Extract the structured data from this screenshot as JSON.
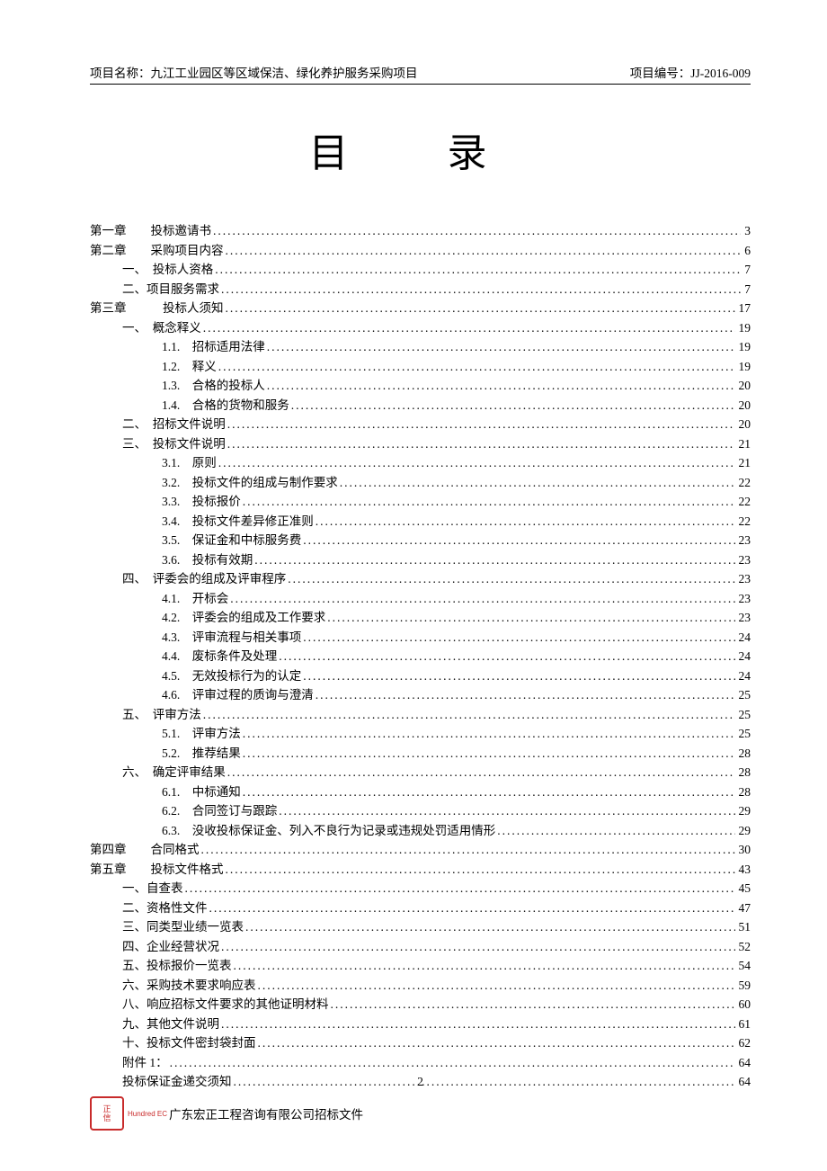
{
  "header": {
    "project_label": "项目名称：",
    "project_name": "九江工业园区等区域保洁、绿化养护服务采购项目",
    "code_label": "项目编号：",
    "code": "JJ-2016-009"
  },
  "title": "目录",
  "toc": [
    {
      "indent": "indent-0",
      "label": "第一章　　投标邀请书",
      "page": "3"
    },
    {
      "indent": "indent-0",
      "label": "第二章　　采购项目内容",
      "page": "6"
    },
    {
      "indent": "indent-1",
      "label": "一、　投标人资格",
      "page": "7"
    },
    {
      "indent": "indent-1",
      "label": "二、项目服务需求",
      "page": "7"
    },
    {
      "indent": "indent-0",
      "label": "第三章　　　投标人须知",
      "page": "17"
    },
    {
      "indent": "indent-1b",
      "label": "一、　概念释义",
      "page": "19"
    },
    {
      "indent": "indent-2",
      "label": "1.1.　招标适用法律",
      "page": "19"
    },
    {
      "indent": "indent-2",
      "label": "1.2.　释义",
      "page": "19"
    },
    {
      "indent": "indent-2",
      "label": "1.3.　合格的投标人",
      "page": "20"
    },
    {
      "indent": "indent-2",
      "label": "1.4.　合格的货物和服务",
      "page": "20"
    },
    {
      "indent": "indent-1b",
      "label": "二、　招标文件说明",
      "page": "20"
    },
    {
      "indent": "indent-1b",
      "label": "三、　投标文件说明",
      "page": "21"
    },
    {
      "indent": "indent-2",
      "label": "3.1.　原则",
      "page": "21"
    },
    {
      "indent": "indent-2",
      "label": "3.2.　投标文件的组成与制作要求",
      "page": "22"
    },
    {
      "indent": "indent-2",
      "label": "3.3.　投标报价",
      "page": "22"
    },
    {
      "indent": "indent-2",
      "label": "3.4.　投标文件差异修正准则",
      "page": "22"
    },
    {
      "indent": "indent-2",
      "label": "3.5.　保证金和中标服务费",
      "page": "23"
    },
    {
      "indent": "indent-2",
      "label": "3.6.　投标有效期",
      "page": "23"
    },
    {
      "indent": "indent-1b",
      "label": "四、　评委会的组成及评审程序",
      "page": "23"
    },
    {
      "indent": "indent-2",
      "label": "4.1.　开标会",
      "page": "23"
    },
    {
      "indent": "indent-2",
      "label": "4.2.　评委会的组成及工作要求",
      "page": "23"
    },
    {
      "indent": "indent-2",
      "label": "4.3.　评审流程与相关事项",
      "page": "24"
    },
    {
      "indent": "indent-2",
      "label": "4.4.　废标条件及处理",
      "page": "24"
    },
    {
      "indent": "indent-2",
      "label": "4.5.　无效投标行为的认定",
      "page": "24"
    },
    {
      "indent": "indent-2",
      "label": "4.6.　评审过程的质询与澄清",
      "page": "25"
    },
    {
      "indent": "indent-1b",
      "label": "五、　评审方法",
      "page": "25"
    },
    {
      "indent": "indent-2",
      "label": "5.1.　评审方法",
      "page": "25"
    },
    {
      "indent": "indent-2",
      "label": "5.2.　推荐结果",
      "page": "28"
    },
    {
      "indent": "indent-1b",
      "label": "六、　确定评审结果",
      "page": "28"
    },
    {
      "indent": "indent-2",
      "label": "6.1.　中标通知",
      "page": "28"
    },
    {
      "indent": "indent-2",
      "label": "6.2.　合同签订与跟踪",
      "page": "29"
    },
    {
      "indent": "indent-2",
      "label": "6.3.　没收投标保证金、列入不良行为记录或违规处罚适用情形",
      "page": "29"
    },
    {
      "indent": "indent-0",
      "label": "第四章　　合同格式",
      "page": "30"
    },
    {
      "indent": "indent-0",
      "label": "第五章　　投标文件格式",
      "page": "43"
    },
    {
      "indent": "indent-1",
      "label": "一、自查表",
      "page": "45"
    },
    {
      "indent": "indent-1",
      "label": "二、资格性文件",
      "page": "47"
    },
    {
      "indent": "indent-1",
      "label": "三、同类型业绩一览表",
      "page": "51"
    },
    {
      "indent": "indent-1",
      "label": "四、企业经营状况",
      "page": "52"
    },
    {
      "indent": "indent-1",
      "label": "五、投标报价一览表",
      "page": "54"
    },
    {
      "indent": "indent-1",
      "label": "六、采购技术要求响应表",
      "page": "59"
    },
    {
      "indent": "indent-1",
      "label": "八、响应招标文件要求的其他证明材料",
      "page": "60"
    },
    {
      "indent": "indent-1",
      "label": "九、其他文件说明",
      "page": "61"
    },
    {
      "indent": "indent-1",
      "label": "十、投标文件密封袋封面",
      "page": "62"
    },
    {
      "indent": "indent-1",
      "label": "附件 1：",
      "page": "64"
    },
    {
      "indent": "indent-1",
      "label": "投标保证金递交须知",
      "page": "64"
    }
  ],
  "footer": {
    "page_number": "2",
    "stamp_text_1": "正",
    "stamp_text_2": "信",
    "stamp_sub": "Hundred EC",
    "company": "广东宏正工程咨询有限公司招标文件"
  }
}
